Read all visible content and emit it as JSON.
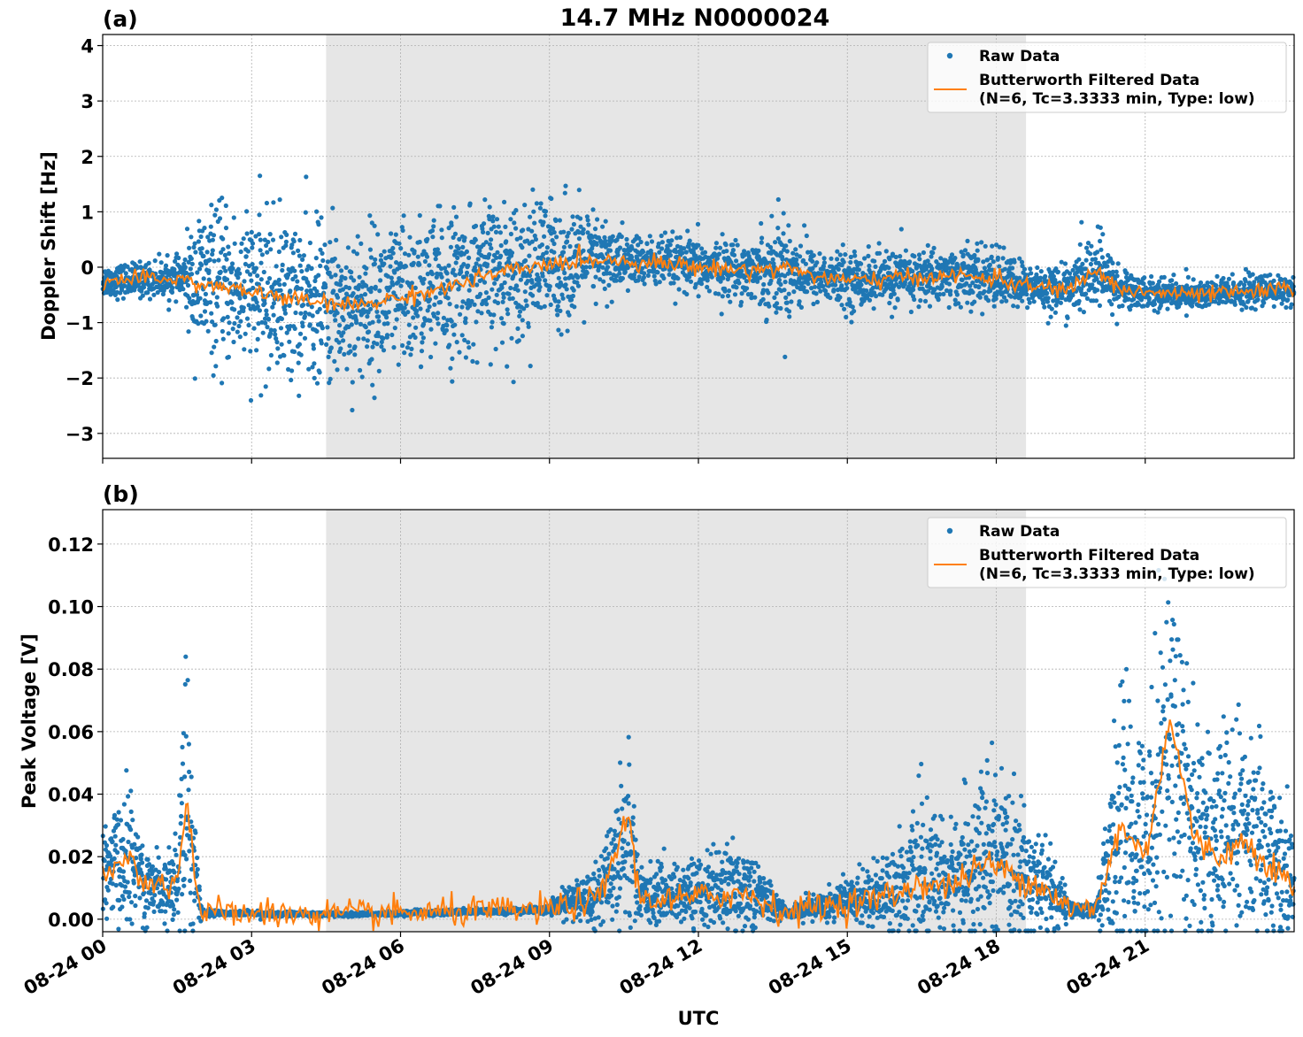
{
  "title": "14.7 MHz N0000024",
  "xlabel": "UTC",
  "x_tick_labels": [
    "08-24 00",
    "08-24 03",
    "08-24 06",
    "08-24 09",
    "08-24 12",
    "08-24 15",
    "08-24 18",
    "08-24 21"
  ],
  "legend": {
    "raw": "Raw Data",
    "filtered_line1": "Butterworth Filtered Data",
    "filtered_line2": "(N=6, Tc=3.3333 min, Type: low)"
  },
  "colors": {
    "raw": "#1f77b4",
    "filtered": "#ff7f0e",
    "shade": "#e6e6e6",
    "grid": "#b0b0b0"
  },
  "chart_data": [
    {
      "type": "scatter",
      "panel_label": "(a)",
      "ylabel": "Doppler Shift [Hz]",
      "xlim": [
        0,
        24
      ],
      "ylim": [
        -3.45,
        4.2
      ],
      "yticks": [
        4,
        3,
        2,
        1,
        0,
        -1,
        -2,
        -3
      ],
      "ytick_labels": [
        "4",
        "3",
        "2",
        "1",
        "0",
        "−1",
        "−2",
        "−3"
      ],
      "shaded_interval_hours": [
        4.5,
        18.6
      ],
      "grid": true,
      "legend_position": "top-right",
      "series": [
        {
          "name": "Raw Data",
          "kind": "scatter-band",
          "x": [
            0,
            1.6,
            1.9,
            3,
            4,
            5,
            6,
            7,
            8,
            9,
            10,
            10.6,
            11,
            12,
            13,
            13.8,
            14.3,
            15,
            16,
            17,
            18,
            18.6,
            19.5,
            20,
            20.5,
            21,
            22,
            23,
            24
          ],
          "center": [
            -0.25,
            -0.2,
            -0.3,
            -0.45,
            -0.6,
            -0.7,
            -0.55,
            -0.35,
            -0.1,
            0.05,
            0.15,
            0.1,
            0.1,
            0.0,
            -0.05,
            0.0,
            -0.15,
            -0.25,
            -0.2,
            -0.15,
            -0.2,
            -0.35,
            -0.4,
            -0.05,
            -0.4,
            -0.45,
            -0.5,
            -0.45,
            -0.4
          ],
          "spread": [
            0.25,
            0.3,
            1.2,
            1.25,
            1.3,
            1.2,
            1.2,
            1.2,
            1.1,
            1.1,
            0.7,
            0.45,
            0.4,
            0.45,
            0.45,
            0.9,
            0.4,
            0.45,
            0.45,
            0.45,
            0.5,
            0.35,
            0.4,
            0.65,
            0.35,
            0.25,
            0.25,
            0.25,
            0.25
          ]
        },
        {
          "name": "Butterworth Filtered Data",
          "kind": "line",
          "x": [
            0,
            1.6,
            1.9,
            3,
            4,
            5,
            6,
            7,
            8,
            9,
            10,
            10.6,
            11,
            12,
            13,
            13.8,
            14.3,
            15,
            16,
            17,
            18,
            18.6,
            19.5,
            20,
            20.5,
            21,
            22,
            23,
            24
          ],
          "center": [
            -0.25,
            -0.2,
            -0.3,
            -0.45,
            -0.6,
            -0.7,
            -0.55,
            -0.35,
            -0.1,
            0.05,
            0.15,
            0.1,
            0.1,
            0.0,
            -0.05,
            0.0,
            -0.15,
            -0.25,
            -0.2,
            -0.15,
            -0.2,
            -0.35,
            -0.4,
            -0.05,
            -0.4,
            -0.45,
            -0.5,
            -0.45,
            -0.4
          ],
          "jitter": 0.12
        }
      ]
    },
    {
      "type": "scatter",
      "panel_label": "(b)",
      "ylabel": "Peak Voltage [V]",
      "xlim": [
        0,
        24
      ],
      "ylim": [
        -0.004,
        0.131
      ],
      "yticks": [
        0.12,
        0.1,
        0.08,
        0.06,
        0.04,
        0.02,
        0.0
      ],
      "ytick_labels": [
        "0.12",
        "0.10",
        "0.08",
        "0.06",
        "0.04",
        "0.02",
        "0.00"
      ],
      "shaded_interval_hours": [
        4.5,
        18.6
      ],
      "grid": true,
      "legend_position": "top-right",
      "series": [
        {
          "name": "Raw Data",
          "kind": "scatter-band",
          "x": [
            0,
            0.5,
            1.0,
            1.5,
            1.7,
            1.9,
            2.0,
            5.0,
            9.0,
            9.5,
            10.0,
            10.6,
            10.8,
            11.5,
            12.5,
            13.0,
            13.8,
            14.3,
            15.0,
            16.0,
            16.5,
            17.0,
            17.8,
            18.4,
            19.0,
            19.5,
            20.0,
            20.5,
            21.0,
            21.5,
            22.0,
            22.5,
            23.0,
            23.5,
            24.0
          ],
          "center": [
            0.015,
            0.02,
            0.01,
            0.012,
            0.045,
            0.01,
            0.002,
            0.0015,
            0.003,
            0.006,
            0.008,
            0.03,
            0.008,
            0.008,
            0.01,
            0.01,
            0.002,
            0.004,
            0.006,
            0.01,
            0.015,
            0.012,
            0.02,
            0.015,
            0.01,
            0.003,
            0.003,
            0.03,
            0.025,
            0.06,
            0.03,
            0.025,
            0.03,
            0.02,
            0.01
          ],
          "spread": [
            0.012,
            0.02,
            0.01,
            0.012,
            0.045,
            0.01,
            0.0008,
            0.0006,
            0.001,
            0.006,
            0.008,
            0.03,
            0.008,
            0.008,
            0.012,
            0.012,
            0.001,
            0.004,
            0.006,
            0.012,
            0.02,
            0.015,
            0.025,
            0.02,
            0.015,
            0.002,
            0.002,
            0.04,
            0.03,
            0.06,
            0.035,
            0.03,
            0.03,
            0.025,
            0.015
          ]
        },
        {
          "name": "Butterworth Filtered Data",
          "kind": "line",
          "x": [
            0,
            0.5,
            1.0,
            1.5,
            1.7,
            1.9,
            2.0,
            5.0,
            9.0,
            9.5,
            10.0,
            10.6,
            10.8,
            11.5,
            12.5,
            13.0,
            13.8,
            14.3,
            15.0,
            16.0,
            16.5,
            17.0,
            17.8,
            18.4,
            19.0,
            19.5,
            20.0,
            20.5,
            21.0,
            21.5,
            22.0,
            22.5,
            23.0,
            23.5,
            24.0
          ],
          "center": [
            0.012,
            0.02,
            0.01,
            0.012,
            0.04,
            0.008,
            0.002,
            0.0015,
            0.003,
            0.005,
            0.006,
            0.034,
            0.007,
            0.006,
            0.008,
            0.008,
            0.002,
            0.004,
            0.005,
            0.008,
            0.012,
            0.01,
            0.018,
            0.014,
            0.01,
            0.003,
            0.003,
            0.03,
            0.02,
            0.065,
            0.025,
            0.02,
            0.025,
            0.018,
            0.01
          ],
          "jitter": 0.004
        }
      ]
    }
  ]
}
